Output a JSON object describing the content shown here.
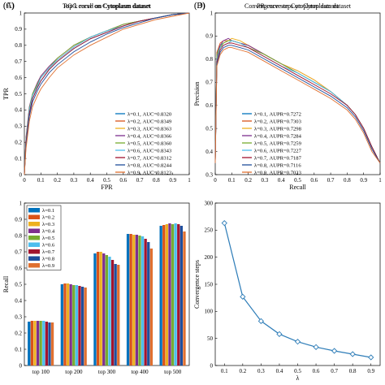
{
  "chart_data": [
    {
      "id": "roc",
      "panel_label": "(A)",
      "type": "line",
      "title": "ROC curve on Cytoplasm dataset",
      "xlabel": "FPR",
      "ylabel": "TPR",
      "xlim": [
        0,
        1
      ],
      "ylim": [
        0,
        1
      ],
      "xticks": [
        "0",
        "0.1",
        "0.2",
        "0.3",
        "0.4",
        "0.5",
        "0.6",
        "0.7",
        "0.8",
        "0.9",
        "1"
      ],
      "yticks": [
        "0",
        "0.1",
        "0.2",
        "0.3",
        "0.4",
        "0.5",
        "0.6",
        "0.7",
        "0.8",
        "0.9",
        "1"
      ],
      "legend_position": "lower-right",
      "series": [
        {
          "name": "λ=0.1, AUC=0.8320",
          "color": "#0072BD",
          "x": [
            0,
            0.01,
            0.03,
            0.05,
            0.08,
            0.1,
            0.15,
            0.2,
            0.25,
            0.3,
            0.4,
            0.5,
            0.6,
            0.7,
            0.8,
            0.9,
            1
          ],
          "y": [
            0,
            0.2,
            0.38,
            0.47,
            0.54,
            0.58,
            0.65,
            0.7,
            0.74,
            0.78,
            0.84,
            0.88,
            0.92,
            0.95,
            0.97,
            0.99,
            1
          ]
        },
        {
          "name": "λ=0.2, AUC=0.8349",
          "color": "#D95319",
          "x": [
            0,
            0.01,
            0.03,
            0.05,
            0.08,
            0.1,
            0.15,
            0.2,
            0.25,
            0.3,
            0.4,
            0.5,
            0.6,
            0.7,
            0.8,
            0.9,
            1
          ],
          "y": [
            0,
            0.22,
            0.4,
            0.49,
            0.56,
            0.6,
            0.66,
            0.71,
            0.75,
            0.79,
            0.85,
            0.89,
            0.92,
            0.95,
            0.97,
            0.99,
            1
          ]
        },
        {
          "name": "λ=0.3, AUC=0.8363",
          "color": "#EDB120",
          "x": [
            0,
            0.01,
            0.03,
            0.05,
            0.08,
            0.1,
            0.15,
            0.2,
            0.25,
            0.3,
            0.4,
            0.5,
            0.6,
            0.7,
            0.8,
            0.9,
            1
          ],
          "y": [
            0,
            0.21,
            0.41,
            0.5,
            0.57,
            0.61,
            0.67,
            0.72,
            0.76,
            0.8,
            0.85,
            0.89,
            0.93,
            0.95,
            0.97,
            0.99,
            1
          ]
        },
        {
          "name": "λ=0.4, AUC=0.8366",
          "color": "#7E2F8E",
          "x": [
            0,
            0.01,
            0.03,
            0.05,
            0.08,
            0.1,
            0.15,
            0.2,
            0.25,
            0.3,
            0.4,
            0.5,
            0.6,
            0.7,
            0.8,
            0.9,
            1
          ],
          "y": [
            0,
            0.23,
            0.42,
            0.5,
            0.57,
            0.61,
            0.67,
            0.72,
            0.76,
            0.8,
            0.85,
            0.89,
            0.93,
            0.95,
            0.97,
            0.99,
            1
          ]
        },
        {
          "name": "λ=0.5, AUC=0.8360",
          "color": "#77AC30",
          "x": [
            0,
            0.01,
            0.03,
            0.05,
            0.08,
            0.1,
            0.15,
            0.2,
            0.25,
            0.3,
            0.4,
            0.5,
            0.6,
            0.7,
            0.8,
            0.9,
            1
          ],
          "y": [
            0,
            0.22,
            0.41,
            0.5,
            0.56,
            0.6,
            0.66,
            0.72,
            0.76,
            0.8,
            0.85,
            0.89,
            0.93,
            0.95,
            0.97,
            0.99,
            1
          ]
        },
        {
          "name": "λ=0.6, AUC=0.8343",
          "color": "#4DBEEE",
          "x": [
            0,
            0.01,
            0.03,
            0.05,
            0.08,
            0.1,
            0.15,
            0.2,
            0.25,
            0.3,
            0.4,
            0.5,
            0.6,
            0.7,
            0.8,
            0.9,
            1
          ],
          "y": [
            0,
            0.21,
            0.4,
            0.49,
            0.55,
            0.6,
            0.66,
            0.71,
            0.75,
            0.79,
            0.85,
            0.89,
            0.92,
            0.95,
            0.97,
            0.99,
            1
          ]
        },
        {
          "name": "λ=0.7, AUC=0.8312",
          "color": "#A2142F",
          "x": [
            0,
            0.01,
            0.03,
            0.05,
            0.08,
            0.1,
            0.15,
            0.2,
            0.25,
            0.3,
            0.4,
            0.5,
            0.6,
            0.7,
            0.8,
            0.9,
            1
          ],
          "y": [
            0,
            0.2,
            0.38,
            0.47,
            0.54,
            0.58,
            0.65,
            0.7,
            0.74,
            0.78,
            0.84,
            0.88,
            0.92,
            0.95,
            0.97,
            0.99,
            1
          ]
        },
        {
          "name": "λ=0.8, AUC=0.8244",
          "color": "#1F4E9C",
          "x": [
            0,
            0.01,
            0.03,
            0.05,
            0.08,
            0.1,
            0.15,
            0.2,
            0.25,
            0.3,
            0.4,
            0.5,
            0.6,
            0.7,
            0.8,
            0.9,
            1
          ],
          "y": [
            0,
            0.18,
            0.36,
            0.45,
            0.52,
            0.56,
            0.63,
            0.68,
            0.72,
            0.76,
            0.82,
            0.87,
            0.91,
            0.94,
            0.97,
            0.99,
            1
          ]
        },
        {
          "name": "λ=0.9, AUC=0.8123",
          "color": "#E07030",
          "x": [
            0,
            0.01,
            0.03,
            0.05,
            0.08,
            0.1,
            0.15,
            0.2,
            0.25,
            0.3,
            0.4,
            0.5,
            0.6,
            0.7,
            0.8,
            0.9,
            1
          ],
          "y": [
            0,
            0.16,
            0.33,
            0.42,
            0.49,
            0.53,
            0.6,
            0.66,
            0.7,
            0.74,
            0.8,
            0.85,
            0.9,
            0.93,
            0.96,
            0.98,
            1
          ]
        }
      ]
    },
    {
      "id": "pr",
      "panel_label": "(B)",
      "type": "line",
      "title": "PR curve on Cytoplasm dataset",
      "xlabel": "Recall",
      "ylabel": "Precision",
      "xlim": [
        0,
        1
      ],
      "ylim": [
        0.3,
        1
      ],
      "xticks": [
        "0",
        "0.1",
        "0.2",
        "0.3",
        "0.4",
        "0.5",
        "0.6",
        "0.7",
        "0.8",
        "0.9",
        "1"
      ],
      "yticks": [
        "0.3",
        "0.4",
        "0.5",
        "0.6",
        "0.7",
        "0.8",
        "0.9",
        "1"
      ],
      "legend_position": "lower-center",
      "series": [
        {
          "name": "λ=0.1, AUPR=0.7272",
          "color": "#0072BD",
          "x": [
            0,
            0.01,
            0.03,
            0.05,
            0.08,
            0.1,
            0.15,
            0.2,
            0.3,
            0.4,
            0.5,
            0.6,
            0.7,
            0.8,
            0.85,
            0.9,
            0.95,
            1
          ],
          "y": [
            0.35,
            0.82,
            0.86,
            0.87,
            0.88,
            0.88,
            0.87,
            0.86,
            0.82,
            0.78,
            0.74,
            0.7,
            0.66,
            0.6,
            0.56,
            0.5,
            0.42,
            0.35
          ]
        },
        {
          "name": "λ=0.2, AUPR=0.7303",
          "color": "#D95319",
          "x": [
            0,
            0.01,
            0.03,
            0.05,
            0.08,
            0.1,
            0.15,
            0.2,
            0.3,
            0.4,
            0.5,
            0.6,
            0.7,
            0.8,
            0.85,
            0.9,
            0.95,
            1
          ],
          "y": [
            0.35,
            0.83,
            0.87,
            0.88,
            0.88,
            0.88,
            0.87,
            0.86,
            0.82,
            0.78,
            0.75,
            0.71,
            0.66,
            0.6,
            0.56,
            0.5,
            0.42,
            0.35
          ]
        },
        {
          "name": "λ=0.3, AUPR=0.7298",
          "color": "#EDB120",
          "x": [
            0,
            0.01,
            0.03,
            0.05,
            0.08,
            0.1,
            0.15,
            0.2,
            0.3,
            0.4,
            0.5,
            0.6,
            0.7,
            0.8,
            0.85,
            0.9,
            0.95,
            1
          ],
          "y": [
            0.35,
            0.8,
            0.85,
            0.87,
            0.88,
            0.89,
            0.88,
            0.86,
            0.82,
            0.78,
            0.75,
            0.71,
            0.66,
            0.6,
            0.56,
            0.5,
            0.42,
            0.35
          ]
        },
        {
          "name": "λ=0.4, AUPR=0.7284",
          "color": "#7E2F8E",
          "x": [
            0,
            0.01,
            0.03,
            0.05,
            0.08,
            0.1,
            0.15,
            0.2,
            0.3,
            0.4,
            0.5,
            0.6,
            0.7,
            0.8,
            0.85,
            0.9,
            0.95,
            1
          ],
          "y": [
            0.35,
            0.81,
            0.86,
            0.88,
            0.89,
            0.88,
            0.87,
            0.86,
            0.82,
            0.78,
            0.74,
            0.7,
            0.66,
            0.6,
            0.56,
            0.5,
            0.42,
            0.35
          ]
        },
        {
          "name": "λ=0.5, AUPR=0.7259",
          "color": "#77AC30",
          "x": [
            0,
            0.01,
            0.03,
            0.05,
            0.08,
            0.1,
            0.15,
            0.2,
            0.3,
            0.4,
            0.5,
            0.6,
            0.7,
            0.8,
            0.85,
            0.9,
            0.95,
            1
          ],
          "y": [
            0.35,
            0.82,
            0.85,
            0.87,
            0.88,
            0.88,
            0.87,
            0.85,
            0.82,
            0.78,
            0.74,
            0.7,
            0.66,
            0.6,
            0.56,
            0.5,
            0.42,
            0.35
          ]
        },
        {
          "name": "λ=0.6, AUPR=0.7227",
          "color": "#4DBEEE",
          "x": [
            0,
            0.01,
            0.03,
            0.05,
            0.08,
            0.1,
            0.15,
            0.2,
            0.3,
            0.4,
            0.5,
            0.6,
            0.7,
            0.8,
            0.85,
            0.9,
            0.95,
            1
          ],
          "y": [
            0.35,
            0.8,
            0.85,
            0.86,
            0.87,
            0.88,
            0.87,
            0.85,
            0.81,
            0.77,
            0.74,
            0.7,
            0.66,
            0.6,
            0.56,
            0.5,
            0.42,
            0.35
          ]
        },
        {
          "name": "λ=0.7, AUPR=0.7187",
          "color": "#A2142F",
          "x": [
            0,
            0.01,
            0.03,
            0.05,
            0.08,
            0.1,
            0.15,
            0.2,
            0.3,
            0.4,
            0.5,
            0.6,
            0.7,
            0.8,
            0.85,
            0.9,
            0.95,
            1
          ],
          "y": [
            0.35,
            0.79,
            0.84,
            0.86,
            0.87,
            0.87,
            0.86,
            0.85,
            0.81,
            0.77,
            0.73,
            0.69,
            0.65,
            0.6,
            0.56,
            0.5,
            0.42,
            0.35
          ]
        },
        {
          "name": "λ=0.8, AUPR=0.7116",
          "color": "#1F4E9C",
          "x": [
            0,
            0.01,
            0.03,
            0.05,
            0.08,
            0.1,
            0.15,
            0.2,
            0.3,
            0.4,
            0.5,
            0.6,
            0.7,
            0.8,
            0.85,
            0.9,
            0.95,
            1
          ],
          "y": [
            0.35,
            0.78,
            0.83,
            0.85,
            0.86,
            0.86,
            0.85,
            0.84,
            0.8,
            0.76,
            0.72,
            0.68,
            0.64,
            0.59,
            0.55,
            0.49,
            0.41,
            0.35
          ]
        },
        {
          "name": "λ=0.9, AUPR=0.7023",
          "color": "#E07030",
          "x": [
            0,
            0.01,
            0.03,
            0.05,
            0.08,
            0.1,
            0.15,
            0.2,
            0.3,
            0.4,
            0.5,
            0.6,
            0.7,
            0.8,
            0.85,
            0.9,
            0.95,
            1
          ],
          "y": [
            0.35,
            0.77,
            0.82,
            0.84,
            0.85,
            0.85,
            0.84,
            0.83,
            0.79,
            0.75,
            0.71,
            0.67,
            0.63,
            0.58,
            0.54,
            0.48,
            0.4,
            0.35
          ]
        }
      ]
    },
    {
      "id": "topk",
      "panel_label": "(C)",
      "type": "bar",
      "title": "Top k recall on Cytoplasm dataset",
      "xlabel": "",
      "ylabel": "Recall",
      "ylim": [
        0,
        1
      ],
      "yticks": [
        "0",
        "0.1",
        "0.2",
        "0.3",
        "0.4",
        "0.5",
        "0.6",
        "0.7",
        "0.8",
        "0.9",
        "1"
      ],
      "legend_position": "top-left",
      "categories": [
        "top 100",
        "top 200",
        "top 300",
        "top 400",
        "top 500"
      ],
      "series": [
        {
          "name": "λ=0.1",
          "color": "#0072BD",
          "values": [
            0.27,
            0.5,
            0.69,
            0.81,
            0.86
          ]
        },
        {
          "name": "λ=0.2",
          "color": "#D95319",
          "values": [
            0.275,
            0.505,
            0.7,
            0.81,
            0.865
          ]
        },
        {
          "name": "λ=0.3",
          "color": "#EDB120",
          "values": [
            0.275,
            0.505,
            0.7,
            0.805,
            0.87
          ]
        },
        {
          "name": "λ=0.4",
          "color": "#7E2F8E",
          "values": [
            0.275,
            0.5,
            0.69,
            0.805,
            0.875
          ]
        },
        {
          "name": "λ=0.5",
          "color": "#77AC30",
          "values": [
            0.275,
            0.495,
            0.68,
            0.8,
            0.87
          ]
        },
        {
          "name": "λ=0.6",
          "color": "#4DBEEE",
          "values": [
            0.275,
            0.495,
            0.67,
            0.795,
            0.875
          ]
        },
        {
          "name": "λ=0.7",
          "color": "#A2142F",
          "values": [
            0.27,
            0.49,
            0.65,
            0.78,
            0.87
          ]
        },
        {
          "name": "λ=0.8",
          "color": "#1F4E9C",
          "values": [
            0.265,
            0.485,
            0.625,
            0.76,
            0.86
          ]
        },
        {
          "name": "λ=0.9",
          "color": "#E07030",
          "values": [
            0.265,
            0.48,
            0.62,
            0.72,
            0.825
          ]
        }
      ]
    },
    {
      "id": "conv",
      "panel_label": "(D)",
      "type": "line",
      "title": "Convergence steps on Cytoplasm dataset",
      "xlabel": "λ",
      "ylabel": "Convergence steps",
      "xlim": [
        0.05,
        0.95
      ],
      "ylim": [
        0,
        300
      ],
      "xticks": [
        "0.1",
        "0.2",
        "0.3",
        "0.4",
        "0.5",
        "0.6",
        "0.7",
        "0.8",
        "0.9"
      ],
      "yticks": [
        "0",
        "50",
        "100",
        "150",
        "200",
        "250",
        "300"
      ],
      "series": [
        {
          "color": "#2E7DB8",
          "x": [
            0.1,
            0.2,
            0.3,
            0.4,
            0.5,
            0.6,
            0.7,
            0.8,
            0.9
          ],
          "y": [
            263,
            127,
            82,
            58,
            44,
            34,
            27,
            21,
            15
          ]
        }
      ]
    }
  ]
}
